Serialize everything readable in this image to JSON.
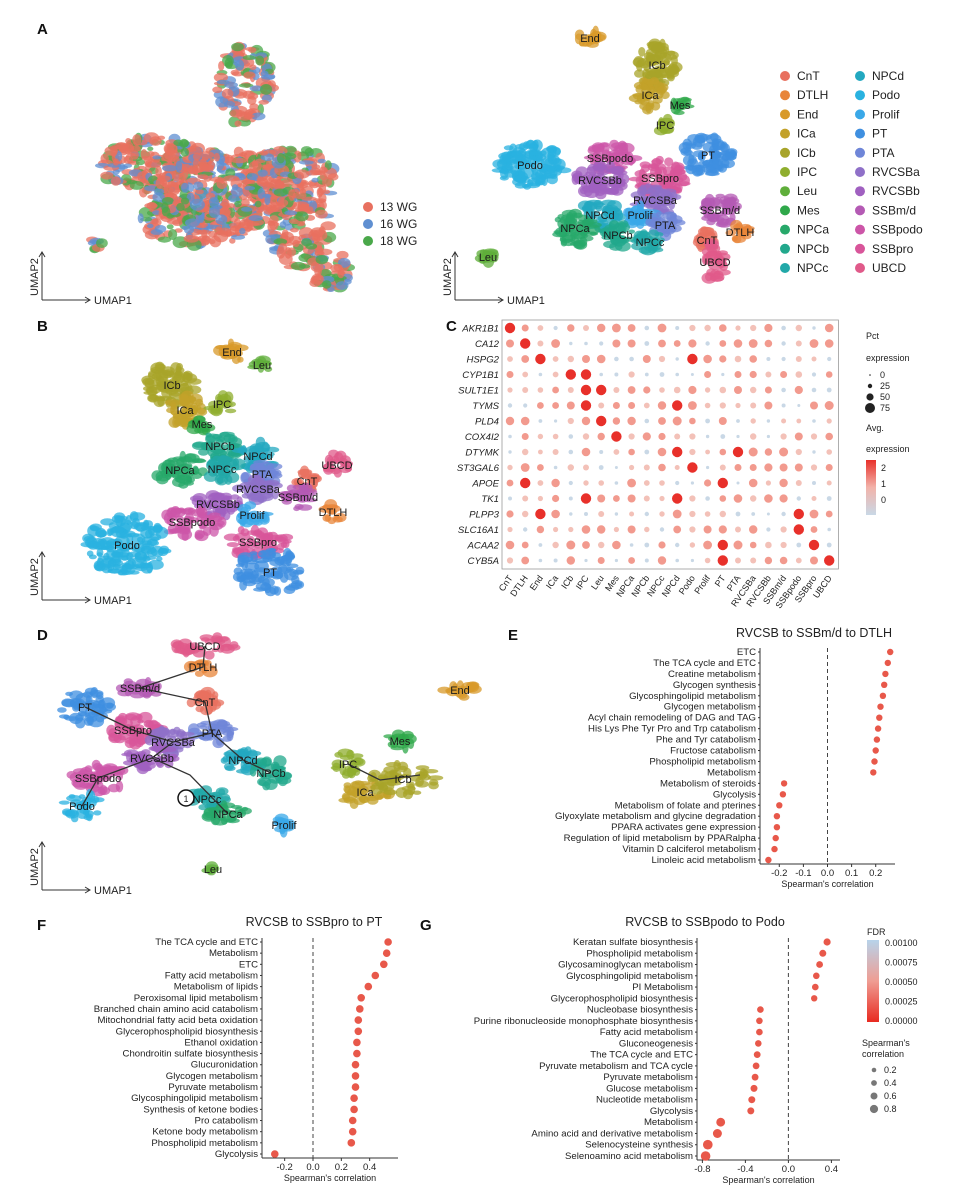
{
  "panels": {
    "A": {
      "label": "A",
      "xlabel": "UMAP1",
      "ylabel": "UMAP2",
      "legend_weeks": [
        {
          "label": "13 WG",
          "color": "#e8705f"
        },
        {
          "label": "16 WG",
          "color": "#5f8fd1"
        },
        {
          "label": "18 WG",
          "color": "#4aa84a"
        }
      ],
      "cluster_legend": [
        {
          "label": "CnT",
          "color": "#e8705f"
        },
        {
          "label": "DTLH",
          "color": "#e8853a"
        },
        {
          "label": "End",
          "color": "#d89a2a"
        },
        {
          "label": "ICa",
          "color": "#c3a12a"
        },
        {
          "label": "ICb",
          "color": "#a8a42a"
        },
        {
          "label": "IPC",
          "color": "#8fae2e"
        },
        {
          "label": "Leu",
          "color": "#5fae3a"
        },
        {
          "label": "Mes",
          "color": "#2fa84a"
        },
        {
          "label": "NPCa",
          "color": "#27a86a"
        },
        {
          "label": "NPCb",
          "color": "#22a88c"
        },
        {
          "label": "NPCc",
          "color": "#22a8a8"
        },
        {
          "label": "NPCd",
          "color": "#23a8c0"
        },
        {
          "label": "Podo",
          "color": "#29b2e0"
        },
        {
          "label": "Prolif",
          "color": "#3aa8e8"
        },
        {
          "label": "PT",
          "color": "#3f8fe0"
        },
        {
          "label": "PTA",
          "color": "#6f86d8"
        },
        {
          "label": "RVCSBa",
          "color": "#8f70c8"
        },
        {
          "label": "RVCSBb",
          "color": "#a060c0"
        },
        {
          "label": "SSBm/d",
          "color": "#b45ab4"
        },
        {
          "label": "SSBpodo",
          "color": "#cc55a8"
        },
        {
          "label": "SSBpro",
          "color": "#d8559a"
        },
        {
          "label": "UBCD",
          "color": "#e05a8a"
        }
      ],
      "cluster_labels": [
        "End",
        "ICb",
        "ICa",
        "Mes",
        "IPC",
        "Podo",
        "SSBpodo",
        "PT",
        "RVCSBb",
        "SSBpro",
        "RVCSBa",
        "SSBm/d",
        "NPCd",
        "Prolif",
        "NPCa",
        "NPCb",
        "PTA",
        "NPCc",
        "DTLH",
        "CnT",
        "UBCD",
        "Leu"
      ]
    },
    "B": {
      "label": "B",
      "xlabel": "UMAP1",
      "ylabel": "UMAP2",
      "cluster_labels": [
        "End",
        "Leu",
        "ICb",
        "ICa",
        "IPC",
        "Mes",
        "NPCb",
        "NPCd",
        "NPCa",
        "NPCc",
        "PTA",
        "UBCD",
        "CnT",
        "RVCSBa",
        "RVCSBb",
        "SSBm/d",
        "DTLH",
        "SSBpodo",
        "Prolif",
        "SSBpro",
        "Podo",
        "PT"
      ]
    },
    "C": {
      "label": "C",
      "genes": [
        "AKR1B1",
        "CA12",
        "HSPG2",
        "CYP1B1",
        "SULT1E1",
        "TYMS",
        "PLD4",
        "COX4I2",
        "DTYMK",
        "ST3GAL6",
        "APOE",
        "TK1",
        "PLPP3",
        "SLC16A1",
        "ACAA2",
        "CYB5A"
      ],
      "clusters": [
        "CnT",
        "DTLH",
        "End",
        "ICa",
        "ICb",
        "IPC",
        "Leu",
        "Mes",
        "NPCa",
        "NPCb",
        "NPCc",
        "NPCd",
        "Podo",
        "Prolif",
        "PT",
        "PTA",
        "RVCSBa",
        "RVCSBb",
        "SSBm/d",
        "SSBpodo",
        "SSBpro",
        "UBCD"
      ],
      "legend_pct_title": "Pct expression",
      "legend_pct_values": [
        "0",
        "25",
        "50",
        "75"
      ],
      "legend_avg_title": "Avg. expression",
      "legend_avg_ticks": [
        "2",
        "1",
        "0"
      ]
    },
    "D": {
      "label": "D",
      "xlabel": "UMAP1",
      "ylabel": "UMAP2",
      "cluster_labels": [
        "UBCD",
        "DTLH",
        "SSBm/d",
        "CnT",
        "PT",
        "SSBpro",
        "PTA",
        "RVCSBa",
        "RVCSBb",
        "NPCd",
        "SSBpodo",
        "NPCb",
        "Podo",
        "NPCc",
        "NPCa",
        "Prolif",
        "Leu",
        "End",
        "Mes",
        "IPC",
        "ICa",
        "ICb"
      ],
      "root_marker": "1"
    },
    "E": {
      "label": "E",
      "title": "RVCSB to SSBm/d to DTLH",
      "xlabel": "Spearman's correlation",
      "xticks": [
        "-0.2",
        "-0.1",
        "0.0",
        "0.1",
        "0.2"
      ],
      "xlim": [
        -0.28,
        0.28
      ],
      "terms": [
        "ETC",
        "The TCA cycle and ETC",
        "Creatine metabolism",
        "Glycogen synthesis",
        "Glycosphingolipid metabolism",
        "Glycogen metabolism",
        "Acyl chain remodeling of DAG and TAG",
        "His Lys Phe Tyr Pro and Trp catabolism",
        "Phe and Tyr catabolism",
        "Fructose catabolism",
        "Phospholipid metabolism",
        "Metabolism",
        "Metabolism of steroids",
        "Glycolysis",
        "Metabolism of folate and pterines",
        "Glyoxylate metabolism and glycine degradation",
        "PPARA activates gene expression",
        "Regulation of lipid metabolism by PPARalpha",
        "Vitamin D calciferol metabolism",
        "Linoleic acid metabolism"
      ],
      "values": [
        0.26,
        0.25,
        0.24,
        0.235,
        0.23,
        0.22,
        0.215,
        0.21,
        0.205,
        0.2,
        0.195,
        0.19,
        -0.18,
        -0.185,
        -0.2,
        -0.21,
        -0.21,
        -0.215,
        -0.22,
        -0.245
      ]
    },
    "F": {
      "label": "F",
      "title": "RVCSB to SSBpro to PT",
      "xlabel": "Spearman's correlation",
      "xticks": [
        "-0.2",
        "0.0",
        "0.2",
        "0.4"
      ],
      "xlim": [
        -0.36,
        0.6
      ],
      "terms": [
        "The TCA cycle and ETC",
        "Metabolism",
        "ETC",
        "Fatty acid metabolism",
        "Metabolism of lipids",
        "Peroxisomal lipid metabolism",
        "Branched chain amino acid catabolism",
        "Mitochondrial fatty acid beta oxidation",
        "Glycerophospholipid biosynthesis",
        "Ethanol oxidation",
        "Chondroitin sulfate biosynthesis",
        "Glucuronidation",
        "Glycogen metabolism",
        "Pyruvate metabolism",
        "Glycosphingolipid metabolism",
        "Synthesis of ketone bodies",
        "Pro catabolism",
        "Ketone body metabolism",
        "Phospholipid metabolism",
        "Glycolysis"
      ],
      "values": [
        0.53,
        0.52,
        0.5,
        0.44,
        0.39,
        0.34,
        0.33,
        0.32,
        0.32,
        0.31,
        0.31,
        0.3,
        0.3,
        0.3,
        0.29,
        0.29,
        0.28,
        0.28,
        0.27,
        -0.27
      ]
    },
    "G": {
      "label": "G",
      "title": "RVCSB to SSBpodo to Podo",
      "xlabel": "Spearman's correlation",
      "xticks": [
        "-0.8",
        "-0.4",
        "0.0",
        "0.4"
      ],
      "xlim": [
        -0.85,
        0.48
      ],
      "terms": [
        "Keratan sulfate biosynthesis",
        "Phospholipid metabolism",
        "Glycosaminoglycan metabolism",
        "Glycosphingolipid metabolism",
        "PI Metabolism",
        "Glycerophospholipid biosynthesis",
        "Nucleobase biosynthesis",
        "Purine ribonucleoside monophosphate biosynthesis",
        "Fatty acid metabolism",
        "Gluconeogenesis",
        "The TCA cycle and ETC",
        "Pyruvate metabolism and TCA cycle",
        "Pyruvate metabolism",
        "Glucose metabolism",
        "Nucleotide metabolism",
        "Glycolysis",
        "Metabolism",
        "Amino acid and derivative metabolism",
        "Selenocysteine synthesis",
        "Selenoamino acid metabolism"
      ],
      "values": [
        0.36,
        0.32,
        0.29,
        0.26,
        0.25,
        0.24,
        -0.26,
        -0.27,
        -0.27,
        -0.28,
        -0.29,
        -0.3,
        -0.31,
        -0.32,
        -0.34,
        -0.35,
        -0.63,
        -0.66,
        -0.75,
        -0.77
      ],
      "legend_fdr_title": "FDR",
      "legend_fdr_ticks": [
        "0.00100",
        "0.00075",
        "0.00050",
        "0.00025",
        "0.00000"
      ],
      "legend_size_title": "Spearman's correlation",
      "legend_size_values": [
        "0.2",
        "0.4",
        "0.6",
        "0.8"
      ]
    }
  },
  "colors": {
    "dot_red": "#e8584a",
    "fdr_high": "#b7d3ea",
    "fdr_low": "#e82a20"
  }
}
